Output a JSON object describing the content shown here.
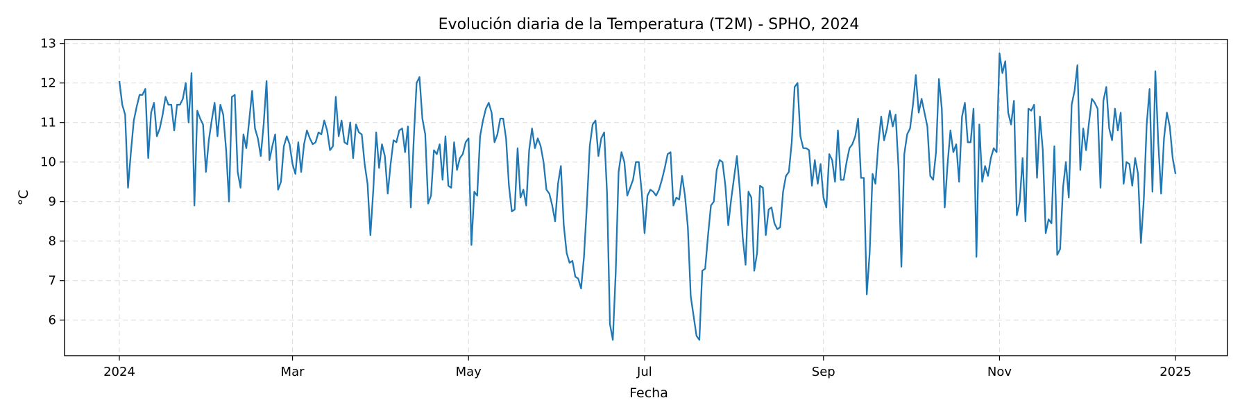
{
  "chart_data": {
    "type": "line",
    "title": "Evolución diaria de la Temperatura (T2M) - SPHO, 2024",
    "xlabel": "Fecha",
    "ylabel": "°C",
    "xlim": [
      "2023-12-13",
      "2025-01-19"
    ],
    "ylim": [
      5.1,
      13.1
    ],
    "x_ticks": [
      {
        "date": "2024-01-01",
        "label": "2024"
      },
      {
        "date": "2024-03-01",
        "label": "Mar"
      },
      {
        "date": "2024-05-01",
        "label": "May"
      },
      {
        "date": "2024-07-01",
        "label": "Jul"
      },
      {
        "date": "2024-09-01",
        "label": "Sep"
      },
      {
        "date": "2024-11-01",
        "label": "Nov"
      },
      {
        "date": "2025-01-01",
        "label": "2025"
      }
    ],
    "y_ticks": [
      6,
      7,
      8,
      9,
      10,
      11,
      12,
      13
    ],
    "grid": true,
    "color": "#1f77b4",
    "series": [
      {
        "name": "",
        "x_start": "2024-01-01",
        "x_end": "2024-12-31",
        "frequency": "daily",
        "values": [
          12.05,
          11.45,
          11.2,
          9.35,
          10.25,
          11.05,
          11.4,
          11.7,
          11.7,
          11.85,
          10.1,
          11.25,
          11.5,
          10.65,
          10.85,
          11.2,
          11.65,
          11.45,
          11.45,
          10.8,
          11.45,
          11.45,
          11.6,
          12.0,
          11.0,
          12.25,
          8.9,
          11.3,
          11.1,
          10.95,
          9.75,
          10.55,
          11.05,
          11.5,
          10.65,
          11.45,
          11.2,
          10.3,
          9.0,
          11.65,
          11.7,
          9.75,
          9.35,
          10.7,
          10.35,
          11.05,
          11.8,
          10.85,
          10.6,
          10.15,
          10.95,
          12.05,
          10.05,
          10.4,
          10.7,
          9.3,
          9.5,
          10.4,
          10.65,
          10.45,
          9.95,
          9.7,
          10.5,
          9.75,
          10.45,
          10.8,
          10.6,
          10.45,
          10.5,
          10.75,
          10.7,
          11.05,
          10.8,
          10.3,
          10.4,
          11.65,
          10.65,
          11.05,
          10.5,
          10.45,
          11.0,
          10.1,
          10.95,
          10.75,
          10.7,
          9.95,
          9.45,
          8.15,
          9.3,
          10.75,
          9.85,
          10.45,
          10.15,
          9.2,
          9.95,
          10.55,
          10.5,
          10.8,
          10.85,
          10.25,
          10.9,
          8.85,
          10.55,
          12.0,
          12.15,
          11.1,
          10.7,
          8.95,
          9.15,
          10.3,
          10.2,
          10.45,
          9.55,
          10.65,
          9.4,
          9.35,
          10.5,
          9.8,
          10.1,
          10.2,
          10.5,
          10.6,
          7.9,
          9.25,
          9.15,
          10.65,
          11.05,
          11.35,
          11.5,
          11.25,
          10.5,
          10.7,
          11.1,
          11.1,
          10.6,
          9.4,
          8.75,
          8.8,
          10.35,
          9.1,
          9.3,
          8.9,
          10.3,
          10.85,
          10.35,
          10.6,
          10.4,
          10.0,
          9.3,
          9.2,
          8.9,
          8.5,
          9.45,
          9.9,
          8.4,
          7.7,
          7.45,
          7.5,
          7.1,
          7.05,
          6.8,
          7.6,
          8.9,
          10.4,
          10.95,
          11.05,
          10.15,
          10.6,
          10.75,
          9.2,
          5.9,
          5.5,
          7.2,
          9.75,
          10.25,
          10.0,
          9.15,
          9.35,
          9.55,
          10.0,
          10.0,
          9.25,
          8.2,
          9.15,
          9.3,
          9.25,
          9.15,
          9.3,
          9.55,
          9.85,
          10.2,
          10.25,
          8.9,
          9.1,
          9.05,
          9.65,
          9.15,
          8.35,
          6.6,
          6.1,
          5.6,
          5.5,
          7.25,
          7.3,
          8.15,
          8.9,
          9.0,
          9.8,
          10.05,
          10.0,
          9.4,
          8.4,
          9.05,
          9.6,
          10.15,
          9.3,
          8.1,
          7.4,
          9.25,
          9.1,
          7.25,
          7.7,
          9.4,
          9.35,
          8.15,
          8.8,
          8.85,
          8.45,
          8.3,
          8.35,
          9.25,
          9.65,
          9.75,
          10.5,
          11.9,
          12.0,
          10.65,
          10.35,
          10.35,
          10.3,
          9.4,
          10.05,
          9.45,
          9.95,
          9.1,
          8.85,
          10.2,
          10.05,
          9.5,
          10.8,
          9.55,
          9.55,
          10.0,
          10.35,
          10.45,
          10.65,
          11.1,
          9.6,
          9.6,
          6.65,
          7.7,
          9.7,
          9.45,
          10.45,
          11.15,
          10.55,
          10.85,
          11.3,
          10.9,
          11.2,
          9.85,
          7.35,
          10.2,
          10.7,
          10.85,
          11.45,
          12.2,
          11.25,
          11.6,
          11.25,
          10.9,
          9.65,
          9.55,
          10.25,
          12.1,
          11.35,
          8.85,
          9.95,
          10.8,
          10.25,
          10.45,
          9.5,
          11.15,
          11.5,
          10.5,
          10.5,
          11.35,
          7.6,
          10.95,
          9.5,
          9.9,
          9.65,
          10.1,
          10.35,
          10.25,
          12.75,
          12.25,
          12.55,
          11.25,
          10.95,
          11.55,
          8.65,
          9.0,
          10.1,
          8.5,
          11.35,
          11.3,
          11.45,
          9.6,
          11.15,
          10.3,
          8.2,
          8.55,
          8.45,
          10.4,
          7.65,
          7.8,
          9.35,
          10.0,
          9.1,
          11.45,
          11.8,
          12.45,
          9.8,
          10.85,
          10.3,
          11.0,
          11.6,
          11.5,
          11.35,
          9.35,
          11.55,
          11.9,
          10.85,
          10.55,
          11.35,
          10.8,
          11.25,
          9.45,
          10.0,
          9.95,
          9.4,
          10.1,
          9.7,
          7.95,
          9.05,
          10.95,
          11.85,
          9.25,
          12.3,
          10.5,
          9.2,
          10.6,
          11.25,
          10.9,
          10.1,
          9.7
        ]
      }
    ]
  }
}
